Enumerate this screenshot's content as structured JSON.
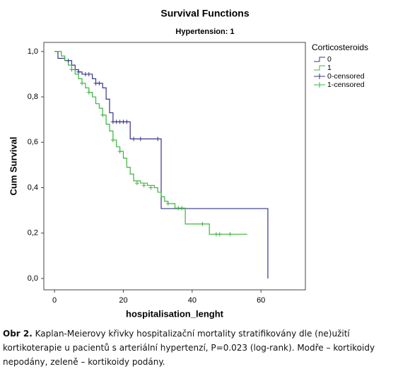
{
  "chart_data": {
    "type": "step",
    "title": "Survival Functions",
    "subtitle": "Hypertension: 1",
    "x_label": "hospitalisation_lenght",
    "y_label": "Cum Survival",
    "legend_title": "Corticosteroids",
    "legend": "right",
    "xlim": [
      -3.1,
      72.9
    ],
    "ylim": [
      -0.05,
      1.04
    ],
    "xticks": [
      0,
      20,
      40,
      60
    ],
    "yticks": [
      {
        "value": 0,
        "label": "0,0"
      },
      {
        "value": 0.2,
        "label": "0,2"
      },
      {
        "value": 0.4,
        "label": "0,4"
      },
      {
        "value": 0.6,
        "label": "0,6"
      },
      {
        "value": 0.8,
        "label": "0,8"
      },
      {
        "value": 1,
        "label": "1,0"
      }
    ],
    "series": [
      {
        "name": "0",
        "color": "#34348a",
        "censored": false,
        "x": [
          0,
          1,
          3,
          5,
          6,
          7,
          8,
          11,
          12,
          14,
          15,
          16,
          17,
          22,
          31,
          62
        ],
        "values": [
          1.0,
          0.97,
          0.96,
          0.94,
          0.92,
          0.91,
          0.9,
          0.88,
          0.86,
          0.84,
          0.79,
          0.73,
          0.69,
          0.615,
          0.308,
          0
        ]
      },
      {
        "name": "1",
        "color": "#3cb43c",
        "censored": false,
        "x": [
          0,
          2,
          3,
          4,
          5,
          6,
          7,
          8,
          9,
          10,
          11,
          12,
          13,
          14,
          15,
          16,
          17,
          18,
          19,
          20,
          21,
          22,
          23,
          25,
          27,
          29,
          30,
          31,
          32,
          33,
          35,
          38,
          45,
          56
        ],
        "values": [
          1.0,
          0.98,
          0.96,
          0.94,
          0.92,
          0.9,
          0.88,
          0.86,
          0.84,
          0.82,
          0.8,
          0.77,
          0.75,
          0.72,
          0.68,
          0.65,
          0.61,
          0.58,
          0.56,
          0.53,
          0.49,
          0.46,
          0.43,
          0.42,
          0.41,
          0.4,
          0.38,
          0.36,
          0.34,
          0.33,
          0.31,
          0.24,
          0.195,
          0.195
        ]
      },
      {
        "name": "0-censored",
        "color": "#34348a",
        "censored": true,
        "x": [
          4,
          7,
          9,
          10,
          12,
          13,
          17,
          18,
          19,
          20,
          21,
          23,
          25,
          30
        ],
        "values": [
          0.96,
          0.91,
          0.9,
          0.9,
          0.86,
          0.86,
          0.69,
          0.69,
          0.69,
          0.69,
          0.69,
          0.615,
          0.615,
          0.615
        ]
      },
      {
        "name": "1-censored",
        "color": "#3cb43c",
        "censored": true,
        "x": [
          5,
          8,
          10,
          14,
          17,
          19,
          24,
          26,
          28,
          33,
          36,
          37,
          43,
          47,
          48,
          51
        ],
        "values": [
          0.92,
          0.86,
          0.82,
          0.72,
          0.61,
          0.56,
          0.42,
          0.41,
          0.4,
          0.33,
          0.31,
          0.31,
          0.24,
          0.195,
          0.195,
          0.195
        ]
      }
    ]
  },
  "caption": {
    "label": "Obr 2.",
    "text": "Kaplan-Meierovy křivky hospitalizační mortality stratifikovány dle (ne)užití kortikoterapie u pacientů s arteriální hypertenzí, P=0.023 (log-rank). Modře – kortikoidy nepodány, zeleně – kortikoidy podány."
  }
}
